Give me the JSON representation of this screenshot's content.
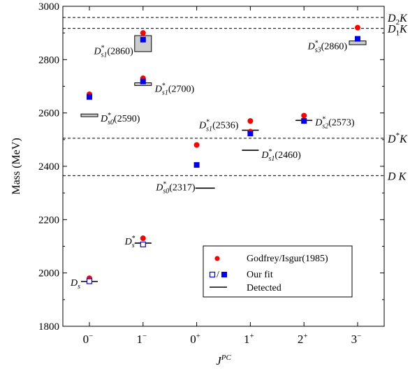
{
  "chart_data": {
    "type": "scatter",
    "title": "",
    "xlabel": "J^PC",
    "ylabel": "Mass (MeV)",
    "ylim": [
      1800,
      3000
    ],
    "yticks": [
      "1800",
      "2000",
      "2200",
      "2400",
      "2600",
      "2800",
      "3000"
    ],
    "categories": [
      {
        "base": "0",
        "sup": "−"
      },
      {
        "base": "1",
        "sup": "−"
      },
      {
        "base": "0",
        "sup": "+"
      },
      {
        "base": "1",
        "sup": "+"
      },
      {
        "base": "2",
        "sup": "+"
      },
      {
        "base": "3",
        "sup": "−"
      }
    ],
    "thresholds": [
      {
        "main": "D",
        "sub": "2",
        "tail": "K",
        "value": 2958
      },
      {
        "main": "D",
        "sub": "1",
        "tail": "K",
        "value": 2917
      },
      {
        "main": "D",
        "sup": "*",
        "tail": "K",
        "value": 2505
      },
      {
        "main": "D",
        "tail": "K",
        "value": 2365
      }
    ],
    "godfrey_isgur": [
      {
        "cat": 0,
        "value": 1980
      },
      {
        "cat": 0,
        "value": 2670
      },
      {
        "cat": 1,
        "value": 2130
      },
      {
        "cat": 1,
        "value": 2730
      },
      {
        "cat": 1,
        "value": 2900
      },
      {
        "cat": 2,
        "value": 2480
      },
      {
        "cat": 3,
        "value": 2530
      },
      {
        "cat": 3,
        "value": 2570
      },
      {
        "cat": 4,
        "value": 2590
      },
      {
        "cat": 5,
        "value": 2920
      }
    ],
    "our_fit": [
      {
        "cat": 0,
        "value": 1969,
        "open": true
      },
      {
        "cat": 0,
        "value": 2660,
        "open": false
      },
      {
        "cat": 1,
        "value": 2107,
        "open": true
      },
      {
        "cat": 1,
        "value": 2718,
        "open": false
      },
      {
        "cat": 1,
        "value": 2875,
        "open": false
      },
      {
        "cat": 2,
        "value": 2405,
        "open": false
      },
      {
        "cat": 3,
        "value": 2523,
        "open": false
      },
      {
        "cat": 4,
        "value": 2570,
        "open": false
      },
      {
        "cat": 5,
        "value": 2878,
        "open": false
      }
    ],
    "detected": [
      {
        "cat": 0,
        "value": 1968,
        "state": {
          "base": "D",
          "sub": "s"
        }
      },
      {
        "cat": 1,
        "value": 2112,
        "state": {
          "base": "D",
          "sup": "*",
          "sub": "s"
        }
      },
      {
        "cat": 2,
        "value": 2318,
        "state": {
          "base": "D",
          "sup": "*",
          "sub": "s0",
          "tail": "(2317)"
        }
      },
      {
        "cat": 3,
        "value": 2460,
        "state": {
          "base": "D",
          "sup": "*",
          "sub": "s1",
          "tail": "(2460)"
        }
      },
      {
        "cat": 3,
        "value": 2535,
        "state": {
          "base": "D",
          "sup": "*",
          "sub": "s1",
          "tail": "(2536)"
        }
      },
      {
        "cat": 4,
        "value": 2572,
        "state": {
          "base": "D",
          "sup": "*",
          "sub": "s2",
          "tail": "(2573)"
        }
      }
    ],
    "bands": [
      {
        "cat": 0,
        "low": 2586,
        "high": 2596,
        "state": {
          "base": "D",
          "sup": "*",
          "sub": "s0",
          "tail": "(2590)"
        }
      },
      {
        "cat": 1,
        "low": 2703,
        "high": 2713,
        "state": {
          "base": "D",
          "sup": "*",
          "sub": "s1",
          "tail": "(2700)"
        }
      },
      {
        "cat": 1,
        "low": 2830,
        "high": 2890,
        "state": {
          "base": "D",
          "sup": "*",
          "sub": "s1",
          "tail": "(2860)"
        }
      },
      {
        "cat": 5,
        "low": 2856,
        "high": 2870,
        "state": {
          "base": "D",
          "sup": "*",
          "sub": "s3",
          "tail": "(2860)"
        }
      }
    ],
    "legend": {
      "placement": "bottom-right",
      "entries": [
        "Godfrey/Isgur(1985)",
        "Our fit",
        "Detected"
      ]
    },
    "colors": {
      "godfrey_isgur": "#ff0000",
      "our_fit": "#0000ee",
      "band": "#cccccc"
    }
  }
}
